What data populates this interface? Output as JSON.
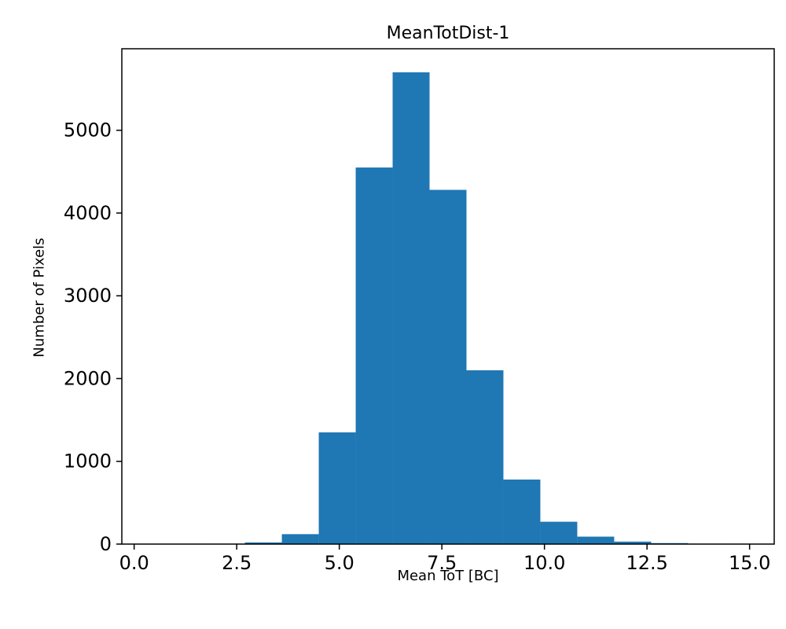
{
  "chart_data": {
    "type": "bar",
    "subtype": "histogram",
    "title": "MeanTotDist-1",
    "xlabel": "Mean ToT [BC]",
    "ylabel": "Number of Pixels",
    "bar_color": "#1f77b4",
    "axis_color": "#000000",
    "background_color": "#ffffff",
    "xlim": [
      -0.3,
      15.6
    ],
    "ylim": [
      0,
      5985
    ],
    "grid": false,
    "legend": "none",
    "bin_edges": [
      0,
      0.9,
      1.8,
      2.7,
      3.6,
      4.5,
      5.4,
      6.3,
      7.2,
      8.1,
      9.0,
      9.9,
      10.8,
      11.7,
      12.6,
      13.5,
      14.4,
      15.3
    ],
    "counts": [
      0,
      0,
      5,
      20,
      120,
      1350,
      4550,
      5700,
      4280,
      2100,
      780,
      270,
      90,
      30,
      12,
      5,
      3
    ],
    "xticks": {
      "values": [
        0,
        2.5,
        5,
        7.5,
        10,
        12.5,
        15
      ],
      "labels": [
        "0.0",
        "2.5",
        "5.0",
        "7.5",
        "10.0",
        "12.5",
        "15.0"
      ]
    },
    "yticks": {
      "values": [
        0,
        1000,
        2000,
        3000,
        4000,
        5000
      ],
      "labels": [
        "0",
        "1000",
        "2000",
        "3000",
        "4000",
        "5000"
      ]
    }
  }
}
